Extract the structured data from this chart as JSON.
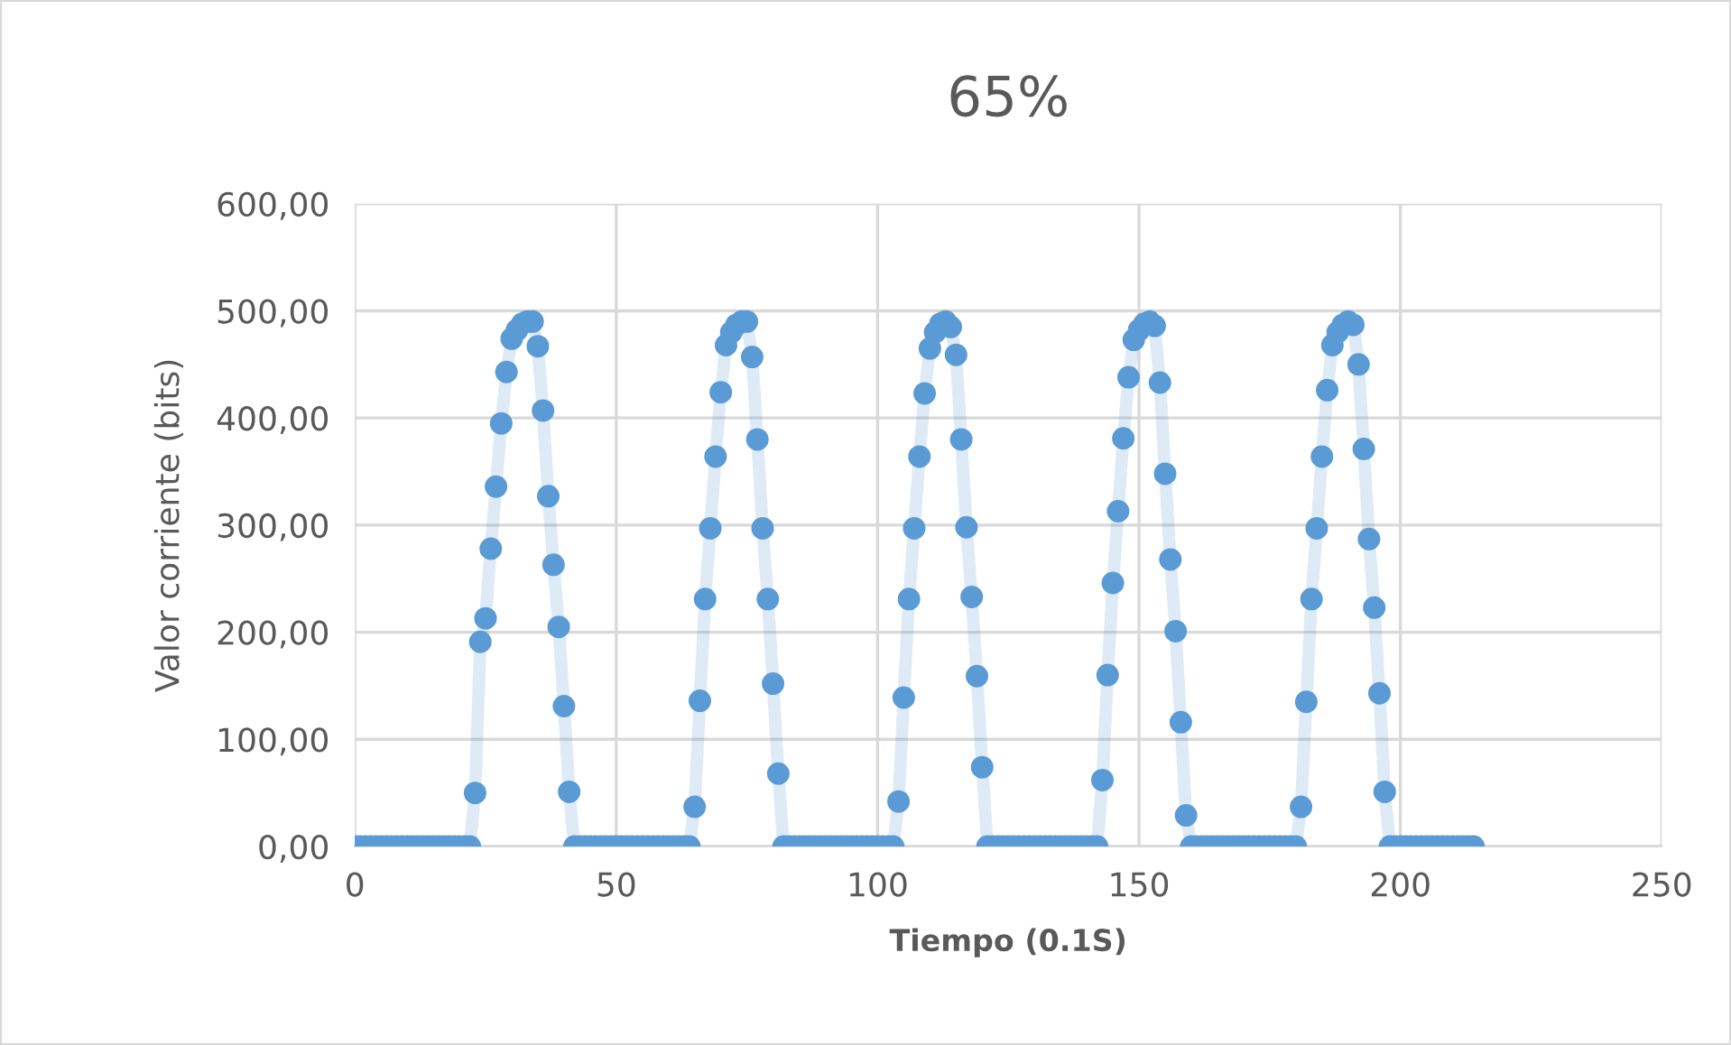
{
  "chart_data": {
    "type": "line",
    "title": "65%",
    "xlabel": "Tiempo (0.1S)",
    "ylabel": "Valor corriente (bits)",
    "x": [
      0,
      1,
      2,
      3,
      4,
      5,
      6,
      7,
      8,
      9,
      10,
      11,
      12,
      13,
      14,
      15,
      16,
      17,
      18,
      19,
      20,
      21,
      22,
      23,
      24,
      25,
      26,
      27,
      28,
      29,
      30,
      31,
      32,
      33,
      34,
      35,
      36,
      37,
      38,
      39,
      40,
      41,
      42,
      43,
      44,
      45,
      46,
      47,
      48,
      49,
      50,
      51,
      52,
      53,
      54,
      55,
      56,
      57,
      58,
      59,
      60,
      61,
      62,
      63,
      64,
      65,
      66,
      67,
      68,
      69,
      70,
      71,
      72,
      73,
      74,
      75,
      76,
      77,
      78,
      79,
      80,
      81,
      82,
      83,
      84,
      85,
      86,
      87,
      88,
      89,
      90,
      91,
      92,
      93,
      94,
      95,
      96,
      97,
      98,
      99,
      100,
      101,
      102,
      103,
      104,
      105,
      106,
      107,
      108,
      109,
      110,
      111,
      112,
      113,
      114,
      115,
      116,
      117,
      118,
      119,
      120,
      121,
      122,
      123,
      124,
      125,
      126,
      127,
      128,
      129,
      130,
      131,
      132,
      133,
      134,
      135,
      136,
      137,
      138,
      139,
      140,
      141,
      142,
      143,
      144,
      145,
      146,
      147,
      148,
      149,
      150,
      151,
      152,
      153,
      154,
      155,
      156,
      157,
      158,
      159,
      160,
      161,
      162,
      163,
      164,
      165,
      166,
      167,
      168,
      169,
      170,
      171,
      172,
      173,
      174,
      175,
      176,
      177,
      178,
      179,
      180,
      181,
      182,
      183,
      184,
      185,
      186,
      187,
      188,
      189,
      190,
      191,
      192,
      193,
      194,
      195,
      196,
      197,
      198,
      199,
      200,
      201,
      202,
      203,
      204,
      205,
      206,
      207,
      208,
      209,
      210,
      211,
      212,
      213,
      214
    ],
    "series": [
      {
        "color": "#5b9bd5",
        "values": [
          0,
          0,
          0,
          0,
          0,
          0,
          0,
          0,
          0,
          0,
          0,
          0,
          0,
          0,
          0,
          0,
          0,
          0,
          0,
          0,
          0,
          0,
          0,
          50,
          191,
          213,
          278,
          336,
          395,
          443,
          474,
          482,
          488,
          490,
          490,
          467,
          407,
          327,
          263,
          205,
          131,
          51,
          0,
          0,
          0,
          0,
          0,
          0,
          0,
          0,
          0,
          0,
          0,
          0,
          0,
          0,
          0,
          0,
          0,
          0,
          0,
          0,
          0,
          0,
          0,
          37,
          136,
          231,
          297,
          364,
          424,
          468,
          480,
          487,
          490,
          490,
          457,
          380,
          297,
          231,
          152,
          68,
          0,
          0,
          0,
          0,
          0,
          0,
          0,
          0,
          0,
          0,
          0,
          0,
          0,
          0,
          0,
          0,
          0,
          0,
          0,
          0,
          0,
          0,
          42,
          139,
          231,
          297,
          364,
          423,
          465,
          480,
          488,
          490,
          485,
          459,
          380,
          298,
          233,
          159,
          74,
          0,
          0,
          0,
          0,
          0,
          0,
          0,
          0,
          0,
          0,
          0,
          0,
          0,
          0,
          0,
          0,
          0,
          0,
          0,
          0,
          0,
          0,
          62,
          160,
          246,
          313,
          381,
          438,
          473,
          482,
          488,
          490,
          486,
          433,
          348,
          268,
          201,
          116,
          29,
          0,
          0,
          0,
          0,
          0,
          0,
          0,
          0,
          0,
          0,
          0,
          0,
          0,
          0,
          0,
          0,
          0,
          0,
          0,
          0,
          0,
          37,
          135,
          231,
          297,
          364,
          426,
          468,
          480,
          487,
          490,
          487,
          450,
          371,
          287,
          223,
          143,
          51,
          0,
          0,
          0,
          0,
          0,
          0,
          0,
          0,
          0,
          0,
          0,
          0,
          0,
          0,
          0,
          0,
          0
        ]
      }
    ],
    "xlim": [
      0,
      250
    ],
    "xticks": [
      0,
      50,
      100,
      150,
      200,
      250
    ],
    "ylim": [
      0,
      600
    ],
    "yticks": [
      {
        "value": 0,
        "label": "0,00"
      },
      {
        "value": 100,
        "label": "100,00"
      },
      {
        "value": 200,
        "label": "200,00"
      },
      {
        "value": 300,
        "label": "300,00"
      },
      {
        "value": 400,
        "label": "400,00"
      },
      {
        "value": 500,
        "label": "500,00"
      },
      {
        "value": 600,
        "label": "600,00"
      }
    ],
    "grid": true,
    "marker": "circle",
    "line_style": "solid",
    "legend": false
  }
}
